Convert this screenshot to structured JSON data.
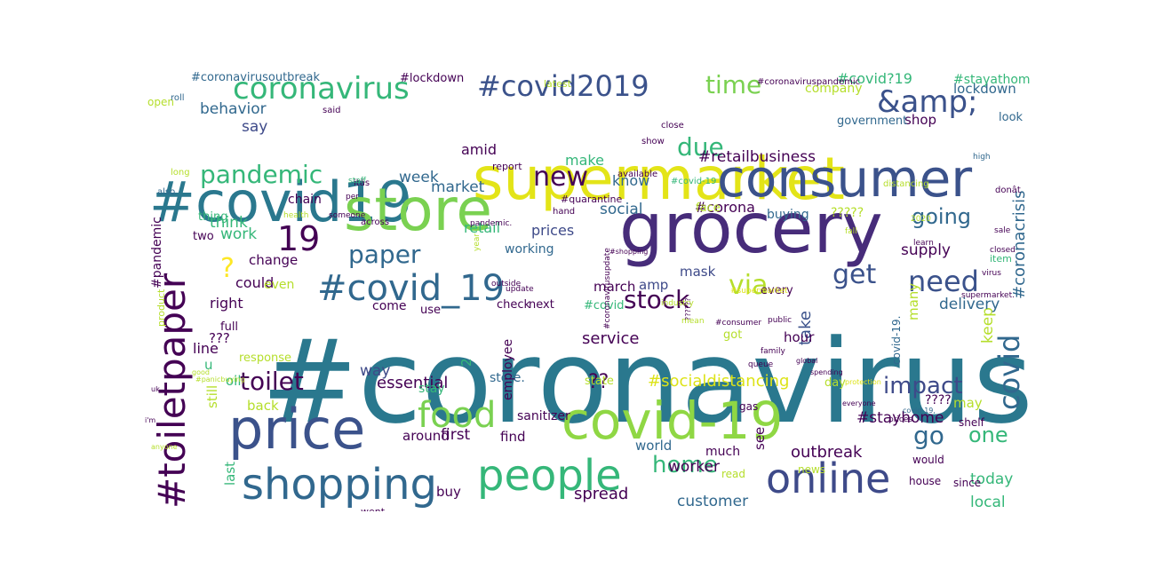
{
  "palette": {
    "purple": "#440154",
    "indigo": "#3b528b",
    "blue": "#31688e",
    "teal": "#21918c",
    "green": "#35b779",
    "lime": "#90d743",
    "yellow": "#fde725"
  },
  "words": [
    {
      "text": "#coronavirus",
      "color": "#2a788e"
    },
    {
      "text": "supermarket",
      "color": "#e3e418"
    },
    {
      "text": "#covid19",
      "color": "#2a788e"
    },
    {
      "text": "store",
      "color": "#7ad151"
    },
    {
      "text": "grocery",
      "color": "#472c7a"
    },
    {
      "text": "consumer",
      "color": "#3b528b"
    },
    {
      "text": "price",
      "color": "#3b528b"
    },
    {
      "text": "covid-19",
      "color": "#8fd744"
    },
    {
      "text": "shopping",
      "color": "#31688e"
    },
    {
      "text": "people",
      "color": "#35b779"
    },
    {
      "text": "online",
      "color": "#3e4a89"
    },
    {
      "text": "#toiletpaper",
      "color": "#440154"
    },
    {
      "text": "food",
      "color": "#7ad151"
    },
    {
      "text": "#covid_19",
      "color": "#31688e"
    },
    {
      "text": "coronavirus",
      "color": "#35b779"
    },
    {
      "text": "#covid2019",
      "color": "#3b528b"
    },
    {
      "text": "&amp;",
      "color": "#3b528b"
    },
    {
      "text": "covid",
      "color": "#31688e"
    },
    {
      "text": "time",
      "color": "#7ad151"
    },
    {
      "text": "pandemic",
      "color": "#35b779"
    },
    {
      "text": "new",
      "color": "#440154"
    },
    {
      "text": "due",
      "color": "#35b779"
    },
    {
      "text": "19",
      "color": "#440154"
    },
    {
      "text": "paper",
      "color": "#31688e"
    },
    {
      "text": "via",
      "color": "#b5de2b"
    },
    {
      "text": "get",
      "color": "#3b528b"
    },
    {
      "text": "need",
      "color": "#3b528b"
    },
    {
      "text": "going",
      "color": "#31688e"
    },
    {
      "text": "stock",
      "color": "#440154"
    },
    {
      "text": "toilet",
      "color": "#440154"
    },
    {
      "text": "impact",
      "color": "#3e4a89"
    },
    {
      "text": "go",
      "color": "#31688e"
    },
    {
      "text": "one",
      "color": "#35b779"
    },
    {
      "text": "home",
      "color": "#35b779"
    },
    {
      "text": "?",
      "color": "#fde725"
    },
    {
      "text": "??",
      "color": "#440154"
    },
    {
      "text": "#retailbusiness",
      "color": "#440154"
    },
    {
      "text": "#coronacrisis",
      "color": "#31688e"
    },
    {
      "text": "#socialdistancing",
      "color": "#dde318"
    },
    {
      "text": "#stayhome",
      "color": "#440154"
    },
    {
      "text": "essential",
      "color": "#440154"
    },
    {
      "text": "outbreak",
      "color": "#440154"
    },
    {
      "text": "spread",
      "color": "#440154"
    },
    {
      "text": "customer",
      "color": "#31688e"
    },
    {
      "text": "today",
      "color": "#35b779"
    },
    {
      "text": "local",
      "color": "#35b779"
    },
    {
      "text": "worker",
      "color": "#440154"
    },
    {
      "text": "first",
      "color": "#440154"
    },
    {
      "text": "take",
      "color": "#3b528b"
    },
    {
      "text": "keep",
      "color": "#b5de2b"
    },
    {
      "text": "delivery",
      "color": "#31688e"
    },
    {
      "text": "supply",
      "color": "#440154"
    },
    {
      "text": "work",
      "color": "#35b779"
    },
    {
      "text": "week",
      "color": "#31688e"
    },
    {
      "text": "market",
      "color": "#31688e"
    },
    {
      "text": "social",
      "color": "#31688e"
    },
    {
      "text": "#corona",
      "color": "#440154"
    },
    {
      "text": "prices",
      "color": "#3e4a89"
    },
    {
      "text": "retail",
      "color": "#35b779"
    },
    {
      "text": "make",
      "color": "#35b779"
    },
    {
      "text": "know",
      "color": "#31688e"
    },
    {
      "text": "amid",
      "color": "#440154"
    },
    {
      "text": "mask",
      "color": "#3e4a89"
    },
    {
      "text": "amp",
      "color": "#3e4a89"
    },
    {
      "text": "march",
      "color": "#440154"
    },
    {
      "text": "many",
      "color": "#b5de2b"
    },
    {
      "text": "change",
      "color": "#440154"
    },
    {
      "text": "could",
      "color": "#440154"
    },
    {
      "text": "right",
      "color": "#440154"
    },
    {
      "text": "think",
      "color": "#35b779"
    },
    {
      "text": "behavior",
      "color": "#31688e"
    },
    {
      "text": "say",
      "color": "#3e4a89"
    },
    {
      "text": "lockdown",
      "color": "#31688e"
    },
    {
      "text": "shop",
      "color": "#440154"
    },
    {
      "text": "company",
      "color": "#b5de2b"
    },
    {
      "text": "government",
      "color": "#31688e"
    },
    {
      "text": "look",
      "color": "#31688e"
    },
    {
      "text": "#covid?19",
      "color": "#35b779"
    },
    {
      "text": "#stayathome",
      "color": "#35b779"
    },
    {
      "text": "#coronavirusoutbreak",
      "color": "#31688e"
    },
    {
      "text": "#lockdown",
      "color": "#440154"
    },
    {
      "text": "open",
      "color": "#b5de2b"
    },
    {
      "text": "?????",
      "color": "#b5de2b"
    },
    {
      "text": "buying",
      "color": "#31688e"
    },
    {
      "text": "face",
      "color": "#b5de2b"
    },
    {
      "text": "every",
      "color": "#440154"
    },
    {
      "text": "hour",
      "color": "#440154"
    },
    {
      "text": "working",
      "color": "#31688e"
    },
    {
      "text": "thing",
      "color": "#35b779"
    },
    {
      "text": "two",
      "color": "#440154"
    },
    {
      "text": "chain",
      "color": "#440154"
    },
    {
      "text": "#pandemic",
      "color": "#440154"
    },
    {
      "text": "line",
      "color": "#440154"
    },
    {
      "text": "???",
      "color": "#440154"
    },
    {
      "text": "u",
      "color": "#35b779"
    },
    {
      "text": "oil",
      "color": "#35b779"
    },
    {
      "text": "back",
      "color": "#b5de2b"
    },
    {
      "text": "way",
      "color": "#3e4a89"
    },
    {
      "text": "still",
      "color": "#b5de2b"
    },
    {
      "text": "last",
      "color": "#35b779"
    },
    {
      "text": "around",
      "color": "#440154"
    },
    {
      "text": "buy",
      "color": "#440154"
    },
    {
      "text": "find",
      "color": "#440154"
    },
    {
      "text": "world",
      "color": "#31688e"
    },
    {
      "text": "much",
      "color": "#440154"
    },
    {
      "text": "see",
      "color": "#440154"
    },
    {
      "text": "read",
      "color": "#b5de2b"
    },
    {
      "text": "news",
      "color": "#b5de2b"
    },
    {
      "text": "house",
      "color": "#440154"
    },
    {
      "text": "would",
      "color": "#440154"
    },
    {
      "text": "since",
      "color": "#440154"
    },
    {
      "text": "shelf",
      "color": "#440154"
    },
    {
      "text": "gas",
      "color": "#440154"
    },
    {
      "text": "day",
      "color": "#b5de2b"
    },
    {
      "text": "????",
      "color": "#440154"
    },
    {
      "text": "may",
      "color": "#b5de2b"
    },
    {
      "text": "got",
      "color": "#b5de2b"
    },
    {
      "text": "2",
      "color": "#35b779"
    },
    {
      "text": "service",
      "color": "#440154"
    },
    {
      "text": "store.",
      "color": "#31688e"
    },
    {
      "text": "state",
      "color": "#b5de2b"
    },
    {
      "text": "stay",
      "color": "#35b779"
    },
    {
      "text": "employee",
      "color": "#440154"
    },
    {
      "text": "sanitizer",
      "color": "#440154"
    },
    {
      "text": "even",
      "color": "#b5de2b"
    },
    {
      "text": "come",
      "color": "#440154"
    },
    {
      "text": "use",
      "color": "#440154"
    },
    {
      "text": "#covid",
      "color": "#35b779"
    },
    {
      "text": "next",
      "color": "#440154"
    },
    {
      "text": "check",
      "color": "#440154"
    },
    {
      "text": "full",
      "color": "#440154"
    },
    {
      "text": "response",
      "color": "#b5de2b"
    },
    {
      "text": "order",
      "color": "#b5de2b"
    },
    {
      "text": "went",
      "color": "#440154"
    },
    {
      "text": "covid-19.",
      "color": "#31688e"
    },
    {
      "text": "product",
      "color": "#b5de2b"
    },
    {
      "text": "item",
      "color": "#35b779"
    },
    {
      "text": "report",
      "color": "#440154"
    },
    {
      "text": "#quarantine",
      "color": "#440154"
    },
    {
      "text": "hand",
      "color": "#440154"
    },
    {
      "text": "across",
      "color": "#440154"
    },
    {
      "text": "distancing",
      "color": "#b5de2b"
    },
    {
      "text": "long",
      "color": "#b5de2b"
    },
    {
      "text": "also",
      "color": "#31688e"
    },
    {
      "text": "roll",
      "color": "#31688e"
    },
    {
      "text": "said",
      "color": "#440154"
    },
    {
      "text": "latest",
      "color": "#b5de2b"
    },
    {
      "text": "#coronaviruspandemic",
      "color": "#440154"
    },
    {
      "text": "close",
      "color": "#440154"
    },
    {
      "text": "show",
      "color": "#440154"
    },
    {
      "text": "available",
      "color": "#440154"
    },
    {
      "text": "#covid-19",
      "color": "#35b779"
    },
    {
      "text": "high",
      "color": "#31688e"
    },
    {
      "text": "donât",
      "color": "#440154"
    },
    {
      "text": "itâs",
      "color": "#440154"
    },
    {
      "text": "per",
      "color": "#440154"
    },
    {
      "text": "staff",
      "color": "#35b779"
    },
    {
      "text": "health",
      "color": "#b5de2b"
    },
    {
      "text": "someone",
      "color": "#440154"
    },
    {
      "text": "fall",
      "color": "#b5de2b"
    },
    {
      "text": "2020",
      "color": "#b5de2b"
    },
    {
      "text": "learn",
      "color": "#440154"
    },
    {
      "text": "sale",
      "color": "#440154"
    },
    {
      "text": "closed",
      "color": "#440154"
    },
    {
      "text": "virus",
      "color": "#440154"
    },
    {
      "text": "supermarket.",
      "color": "#440154"
    },
    {
      "text": "#supermarket",
      "color": "#dde318"
    },
    {
      "text": "#coronavirusupdate",
      "color": "#440154"
    },
    {
      "text": "industry",
      "color": "#b5de2b"
    },
    {
      "text": "mean",
      "color": "#b5de2b"
    },
    {
      "text": "outside",
      "color": "#440154"
    },
    {
      "text": "update",
      "color": "#440154"
    },
    {
      "text": "pandemic.",
      "color": "#440154"
    },
    {
      "text": "year",
      "color": "#b5de2b"
    },
    {
      "text": "#shopping",
      "color": "#440154"
    },
    {
      "text": "??????",
      "color": "#440154"
    },
    {
      "text": "#consumer",
      "color": "#440154"
    },
    {
      "text": "public",
      "color": "#440154"
    },
    {
      "text": "family",
      "color": "#440154"
    },
    {
      "text": "queue",
      "color": "#440154"
    },
    {
      "text": "global",
      "color": "#440154"
    },
    {
      "text": "spending",
      "color": "#440154"
    },
    {
      "text": "protection",
      "color": "#dde318"
    },
    {
      "text": "everyone",
      "color": "#440154"
    },
    {
      "text": "covid-19,",
      "color": "#31688e"
    },
    {
      "text": "prices.",
      "color": "#440154"
    },
    {
      "text": "good",
      "color": "#b5de2b"
    },
    {
      "text": "#panicbuying",
      "color": "#b5de2b"
    },
    {
      "text": "uk",
      "color": "#440154"
    },
    {
      "text": "i'm",
      "color": "#440154"
    },
    {
      "text": "anyone",
      "color": "#b5de2b"
    }
  ]
}
